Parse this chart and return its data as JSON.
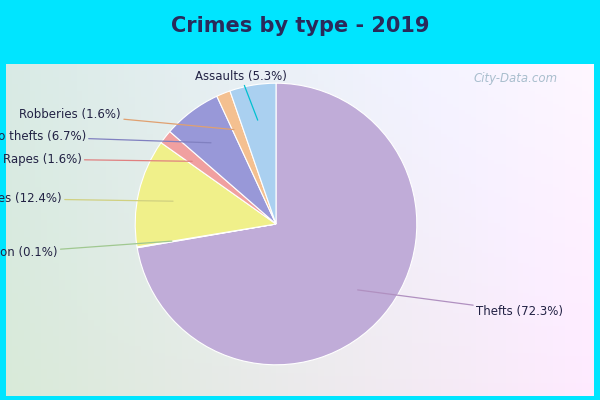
{
  "title": "Crimes by type - 2019",
  "title_color": "#2a2a5a",
  "title_fontsize": 15,
  "labels": [
    "Thefts",
    "Burglaries",
    "Auto thefts",
    "Assaults",
    "Robberies",
    "Rapes",
    "Arson"
  ],
  "percentages": [
    72.3,
    12.4,
    6.7,
    5.3,
    1.6,
    1.6,
    0.1
  ],
  "colors": [
    "#c0acd8",
    "#f0f08a",
    "#9898d8",
    "#aad0f0",
    "#f4c090",
    "#f0a0a0",
    "#c8e8b0"
  ],
  "label_fontsize": 8.5,
  "label_color": "#222244",
  "line_color_assaults": "#00c0d0",
  "line_color_robberies": "#e0a070",
  "line_color_autothefts": "#8080c0",
  "line_color_rapes": "#e08080",
  "line_color_burglaries": "#d0d080",
  "line_color_arson": "#a0c890",
  "line_color_thefts": "#a090c0",
  "background_fig": "#00e5ff",
  "background_ax": "#d0ecd8",
  "watermark_text": "City-Data.com",
  "watermark_color": "#a0b8c8",
  "startangle": 90
}
